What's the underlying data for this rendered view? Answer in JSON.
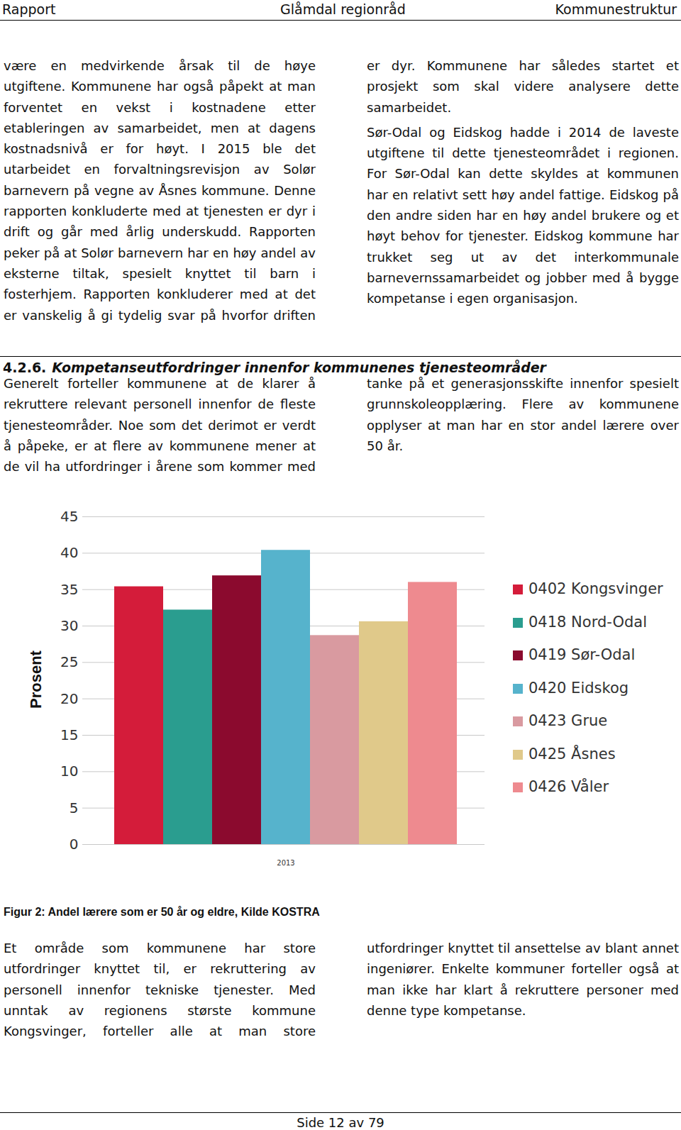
{
  "header": {
    "left": "Rapport",
    "center": "Glåmdal regionråd",
    "right": "Kommunestruktur"
  },
  "intro": [
    "være en medvirkende årsak til de høye utgiftene. Kommunene har også påpekt at man forventet en vekst i kostnadene etter etableringen av samarbeidet, men at dagens kostnadsnivå er for høyt. I 2015 ble det utarbeidet en forvaltningsrevisjon av Solør barnevern på vegne av Åsnes kommune. Denne rapporten konkluderte med at tjenesten er dyr i drift og går med årlig underskudd. Rapporten peker på at Solør barnevern har en høy andel av eksterne tiltak, spesielt knyttet til barn i fosterhjem. Rapporten konkluderer med at det er vanskelig å gi tydelig svar på hvorfor driften er dyr. Kommunene har således startet et prosjekt som skal videre analysere dette samarbeidet.",
    "Sør-Odal og Eidskog hadde i 2014 de laveste utgiftene til dette tjenesteområdet i regionen. For Sør-Odal kan dette skyldes at kommunen har en relativt sett høy andel fattige. Eidskog på den andre siden har en høy andel brukere og et høyt behov for tjenester. Eidskog kommune har trukket seg ut av det interkommunale barnevernssamarbeidet og jobber med å bygge kompetanse i egen organisasjon."
  ],
  "section": {
    "number": "4.2.6.",
    "title": "Kompetanseutfordringer innenfor kommunenes tjenesteområder",
    "paragraphs": [
      "Generelt forteller kommunene at de klarer å rekruttere relevant personell innenfor de fleste tjenesteområder. Noe som det derimot er verdt å påpeke, er at flere av kommunene mener at de vil ha utfordringer i årene som kommer med tanke på et generasjonsskifte innenfor spesielt grunnskoleopplæring. Flere av kommunene opplyser at man har en stor andel lærere over 50 år."
    ]
  },
  "figure_caption": "Figur 2: Andel lærere som er 50 år og eldre, Kilde KOSTRA",
  "after_figure": [
    "Et område som kommunene har store utfordringer knyttet til, er rekruttering av personell innenfor tekniske tjenester. Med unntak av regionens største kommune Kongsvinger, forteller alle at man store utfordringer knyttet til ansettelse av blant annet ingeniører. Enkelte kommuner forteller også at man ikke har klart å rekruttere personer med denne type kompetanse."
  ],
  "footer": "Side 12 av 79",
  "chart_data": {
    "type": "bar",
    "categories": [
      "2013"
    ],
    "y_label": "Prosent",
    "series": [
      {
        "name": "0402 Kongsvinger",
        "color": "#d41c3a",
        "values": [
          35.4
        ]
      },
      {
        "name": "0418 Nord-Odal",
        "color": "#2a9d8f",
        "values": [
          32.2
        ]
      },
      {
        "name": "0419 Sør-Odal",
        "color": "#8b0a2e",
        "values": [
          36.9
        ]
      },
      {
        "name": "0420 Eidskog",
        "color": "#56b3cc",
        "values": [
          40.4
        ]
      },
      {
        "name": "0423 Grue",
        "color": "#d99aa0",
        "values": [
          28.7
        ]
      },
      {
        "name": "0425 Åsnes",
        "color": "#e0c98a",
        "values": [
          30.6
        ]
      },
      {
        "name": "0426 Våler",
        "color": "#ee8a8f",
        "values": [
          36.0
        ]
      }
    ],
    "ylim": [
      0,
      45
    ],
    "yticks": [
      0,
      5,
      10,
      15,
      20,
      25,
      30,
      35,
      40,
      45
    ],
    "grid": true,
    "legend": "right"
  }
}
